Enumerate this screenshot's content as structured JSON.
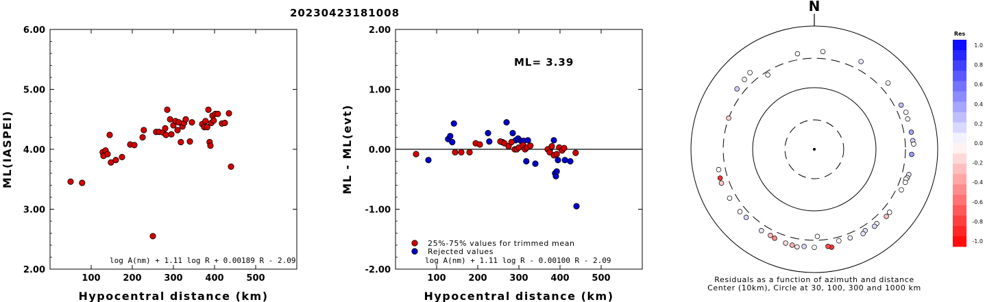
{
  "page_title": "20230423181008",
  "chart_data": [
    {
      "type": "scatter",
      "xlabel": "Hypocentral distance (km)",
      "ylabel": "ML(IASPEI)",
      "xlim": [
        0,
        600
      ],
      "ylim": [
        2.0,
        6.0
      ],
      "x_ticks": [
        "100",
        "200",
        "300",
        "400",
        "500"
      ],
      "y_ticks": [
        "2.00",
        "3.00",
        "4.00",
        "5.00",
        "6.00"
      ],
      "formula": "log A(nm) + 1.11 log R + 0.00189 R - 2.09",
      "marker_color": "#d40000",
      "points": [
        [
          50,
          3.46
        ],
        [
          78,
          3.44
        ],
        [
          128,
          3.95
        ],
        [
          130,
          3.89
        ],
        [
          135,
          3.98
        ],
        [
          140,
          3.92
        ],
        [
          145,
          4.24
        ],
        [
          148,
          3.78
        ],
        [
          160,
          3.82
        ],
        [
          175,
          3.87
        ],
        [
          195,
          4.08
        ],
        [
          205,
          4.07
        ],
        [
          225,
          4.2
        ],
        [
          228,
          4.32
        ],
        [
          250,
          2.55
        ],
        [
          258,
          4.29
        ],
        [
          265,
          4.29
        ],
        [
          275,
          4.28
        ],
        [
          280,
          4.35
        ],
        [
          282,
          4.24
        ],
        [
          285,
          4.66
        ],
        [
          292,
          4.5
        ],
        [
          295,
          4.25
        ],
        [
          300,
          4.4
        ],
        [
          305,
          4.47
        ],
        [
          310,
          4.32
        ],
        [
          313,
          4.45
        ],
        [
          318,
          4.12
        ],
        [
          322,
          4.38
        ],
        [
          326,
          4.44
        ],
        [
          330,
          4.5
        ],
        [
          340,
          4.13
        ],
        [
          345,
          4.45
        ],
        [
          370,
          4.42
        ],
        [
          375,
          4.37
        ],
        [
          378,
          4.47
        ],
        [
          382,
          4.37
        ],
        [
          385,
          4.66
        ],
        [
          388,
          4.12
        ],
        [
          390,
          4.06
        ],
        [
          392,
          4.44
        ],
        [
          395,
          4.56
        ],
        [
          398,
          4.48
        ],
        [
          402,
          4.59
        ],
        [
          408,
          4.59
        ],
        [
          418,
          4.43
        ],
        [
          425,
          4.44
        ],
        [
          435,
          4.6
        ],
        [
          440,
          3.71
        ]
      ]
    },
    {
      "type": "scatter",
      "xlabel": "Hypocentral distance (km)",
      "ylabel": "ML - ML(evt)",
      "xlim": [
        0,
        600
      ],
      "ylim": [
        -2.0,
        2.0
      ],
      "x_ticks": [
        "100",
        "200",
        "300",
        "400",
        "500"
      ],
      "y_ticks": [
        "-2.00",
        "-1.00",
        "0.00",
        "1.00",
        "2.00"
      ],
      "annotation": "ML= 3.39",
      "formula": "log A(nm) + 1.11 log R - 0.00100 R - 2.09",
      "legend": [
        "25%-75% values for trimmed mean",
        "Rejected values"
      ],
      "legend_colors": [
        "#d40000",
        "#0000cc"
      ],
      "series": [
        {
          "color": "#d40000",
          "points": [
            [
              50,
              -0.08
            ],
            [
              145,
              -0.05
            ],
            [
              160,
              -0.05
            ],
            [
              180,
              -0.05
            ],
            [
              195,
              0.1
            ],
            [
              205,
              0.08
            ],
            [
              255,
              0.13
            ],
            [
              265,
              0.1
            ],
            [
              275,
              0.05
            ],
            [
              282,
              0.12
            ],
            [
              290,
              0.0
            ],
            [
              295,
              0.0
            ],
            [
              300,
              0.03
            ],
            [
              310,
              0.07
            ],
            [
              315,
              0.0
            ],
            [
              320,
              0.03
            ],
            [
              328,
              0.06
            ],
            [
              370,
              0.0
            ],
            [
              375,
              -0.05
            ],
            [
              380,
              0.05
            ],
            [
              385,
              -0.1
            ],
            [
              392,
              -0.08
            ],
            [
              398,
              0.03
            ],
            [
              405,
              -0.02
            ],
            [
              410,
              0.02
            ],
            [
              438,
              -0.06
            ]
          ]
        },
        {
          "color": "#0000cc",
          "points": [
            [
              80,
              -0.18
            ],
            [
              128,
              0.17
            ],
            [
              133,
              0.22
            ],
            [
              138,
              0.12
            ],
            [
              142,
              0.43
            ],
            [
              225,
              0.27
            ],
            [
              228,
              0.13
            ],
            [
              260,
              0.12
            ],
            [
              270,
              0.45
            ],
            [
              285,
              0.27
            ],
            [
              292,
              0.15
            ],
            [
              298,
              0.18
            ],
            [
              305,
              0.14
            ],
            [
              312,
              0.14
            ],
            [
              318,
              -0.2
            ],
            [
              322,
              0.15
            ],
            [
              340,
              -0.24
            ],
            [
              375,
              -0.03
            ],
            [
              385,
              0.15
            ],
            [
              388,
              -0.4
            ],
            [
              390,
              -0.45
            ],
            [
              392,
              -0.37
            ],
            [
              395,
              -0.18
            ],
            [
              412,
              -0.18
            ],
            [
              425,
              -0.2
            ],
            [
              440,
              -0.95
            ]
          ]
        }
      ]
    },
    {
      "type": "polar-scatter",
      "north_label": "N",
      "caption_line1": "Residuals as a function of azimuth and distance",
      "caption_line2": "Center (10km), Circle at 30, 100, 300 and 1000 km",
      "colorbar_title": "Res",
      "colorbar_ticks": [
        "1.0",
        "0.8",
        "0.6",
        "0.4",
        "0.2",
        "0.0",
        "-0.2",
        "-0.4",
        "-0.6",
        "-0.8",
        "-1.0"
      ],
      "stations": [
        {
          "az": 5,
          "d": 390,
          "r": -0.02
        },
        {
          "az": 28,
          "d": 410,
          "r": 0.1
        },
        {
          "az": 48,
          "d": 405,
          "r": -0.03
        },
        {
          "az": 63,
          "d": 380,
          "r": 0.25
        },
        {
          "az": 68,
          "d": 400,
          "r": -0.03
        },
        {
          "az": 72,
          "d": 390,
          "r": 0.05
        },
        {
          "az": 80,
          "d": 395,
          "r": 0.35
        },
        {
          "az": 85,
          "d": 400,
          "r": 0.18
        },
        {
          "az": 87,
          "d": 410,
          "r": -0.02
        },
        {
          "az": 93,
          "d": 380,
          "r": 0.4
        },
        {
          "az": 105,
          "d": 385,
          "r": 0.1
        },
        {
          "az": 107,
          "d": 375,
          "r": -0.03
        },
        {
          "az": 108,
          "d": 365,
          "r": -0.02
        },
        {
          "az": 110,
          "d": 370,
          "r": 0.0
        },
        {
          "az": 115,
          "d": 360,
          "r": 0.0
        },
        {
          "az": 130,
          "d": 390,
          "r": 0.02
        },
        {
          "az": 133,
          "d": 395,
          "r": -0.25
        },
        {
          "az": 140,
          "d": 375,
          "r": 0.05
        },
        {
          "az": 142,
          "d": 385,
          "r": 0.15
        },
        {
          "az": 148,
          "d": 360,
          "r": 0.12
        },
        {
          "az": 150,
          "d": 380,
          "r": 0.1
        },
        {
          "az": 158,
          "d": 355,
          "r": 0.05
        },
        {
          "az": 165,
          "d": 345,
          "r": -0.02
        },
        {
          "az": 170,
          "d": 410,
          "r": -0.8
        },
        {
          "az": 172,
          "d": 390,
          "r": -0.7
        },
        {
          "az": 178,
          "d": 260,
          "r": -0.02
        },
        {
          "az": 180,
          "d": 390,
          "r": 0.0
        },
        {
          "az": 186,
          "d": 385,
          "r": 0.15
        },
        {
          "az": 190,
          "d": 405,
          "r": -0.1
        },
        {
          "az": 193,
          "d": 395,
          "r": -0.3
        },
        {
          "az": 197,
          "d": 390,
          "r": -0.15
        },
        {
          "az": 204,
          "d": 380,
          "r": -0.45
        },
        {
          "az": 207,
          "d": 370,
          "r": -0.25
        },
        {
          "az": 213,
          "d": 375,
          "r": 0.1
        },
        {
          "az": 225,
          "d": 365,
          "r": 0.15
        },
        {
          "az": 230,
          "d": 375,
          "r": -0.05
        },
        {
          "az": 240,
          "d": 385,
          "r": -0.02
        },
        {
          "az": 250,
          "d": 400,
          "r": -0.2
        },
        {
          "az": 253,
          "d": 395,
          "r": -0.8
        },
        {
          "az": 258,
          "d": 385,
          "r": 0.02
        },
        {
          "az": 290,
          "d": 300,
          "r": -0.2
        },
        {
          "az": 308,
          "d": 390,
          "r": 0.2
        },
        {
          "az": 315,
          "d": 400,
          "r": -0.02
        },
        {
          "az": 320,
          "d": 420,
          "r": -0.02
        },
        {
          "az": 328,
          "d": 265,
          "r": 0.0
        },
        {
          "az": 350,
          "d": 375,
          "r": 0.02
        }
      ]
    }
  ]
}
